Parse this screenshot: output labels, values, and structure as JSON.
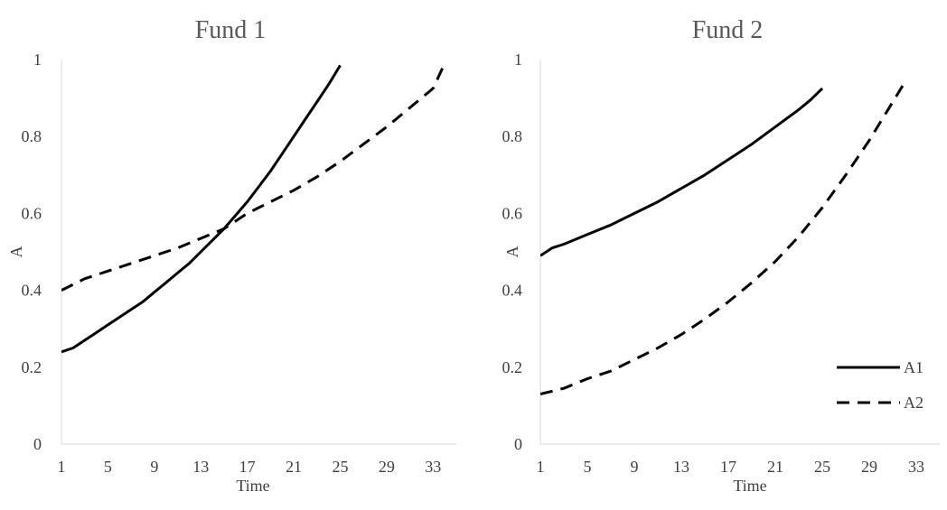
{
  "chart_data": [
    {
      "type": "line",
      "title": "Fund 1",
      "xlabel": "Time",
      "ylabel": "A",
      "xlim": [
        1,
        35
      ],
      "ylim": [
        0,
        1
      ],
      "x_ticks": [
        1,
        5,
        9,
        13,
        17,
        21,
        25,
        29,
        33
      ],
      "y_ticks": [
        0,
        0.2,
        0.4,
        0.6,
        0.8,
        1
      ],
      "y_tick_labels": [
        "0",
        "0.2",
        "0.4",
        "0.6",
        "0.8",
        "1"
      ],
      "grid": false,
      "series": [
        {
          "name": "A1",
          "style": "solid",
          "x": [
            1,
            2,
            3,
            4,
            5,
            6,
            7,
            8,
            9,
            10,
            11,
            12,
            13,
            14,
            15,
            16,
            17,
            18,
            19,
            20,
            21,
            22,
            23,
            24,
            25
          ],
          "y": [
            0.24,
            0.25,
            0.27,
            0.29,
            0.31,
            0.33,
            0.35,
            0.37,
            0.395,
            0.42,
            0.445,
            0.47,
            0.5,
            0.53,
            0.56,
            0.595,
            0.63,
            0.67,
            0.71,
            0.755,
            0.8,
            0.845,
            0.89,
            0.935,
            0.985
          ]
        },
        {
          "name": "A2",
          "style": "dashed",
          "x": [
            1,
            3,
            5,
            7,
            9,
            11,
            13,
            15,
            17,
            19,
            21,
            23,
            25,
            27,
            29,
            31,
            33,
            34
          ],
          "y": [
            0.4,
            0.43,
            0.45,
            0.47,
            0.49,
            0.51,
            0.535,
            0.56,
            0.6,
            0.63,
            0.66,
            0.695,
            0.735,
            0.78,
            0.825,
            0.875,
            0.925,
            0.99
          ]
        }
      ]
    },
    {
      "type": "line",
      "title": "Fund 2",
      "xlabel": "Time",
      "ylabel": "A",
      "xlim": [
        1,
        35
      ],
      "ylim": [
        0,
        1
      ],
      "x_ticks": [
        1,
        5,
        9,
        13,
        17,
        21,
        25,
        29,
        33
      ],
      "y_ticks": [
        0,
        0.2,
        0.4,
        0.6,
        0.8,
        1
      ],
      "y_tick_labels": [
        "0",
        "0.2",
        "0.4",
        "0.6",
        "0.8",
        "1"
      ],
      "grid": false,
      "legend": {
        "placement": "bottom-right",
        "entries": [
          {
            "name": "A1",
            "style": "solid"
          },
          {
            "name": "A2",
            "style": "dashed"
          }
        ]
      },
      "series": [
        {
          "name": "A1",
          "style": "solid",
          "x": [
            1,
            2,
            3,
            5,
            7,
            9,
            11,
            13,
            15,
            17,
            19,
            21,
            23,
            24,
            25
          ],
          "y": [
            0.49,
            0.51,
            0.52,
            0.545,
            0.57,
            0.6,
            0.63,
            0.665,
            0.7,
            0.74,
            0.78,
            0.825,
            0.87,
            0.895,
            0.925
          ]
        },
        {
          "name": "A2",
          "style": "dashed",
          "x": [
            1,
            3,
            5,
            7,
            9,
            11,
            13,
            15,
            17,
            19,
            21,
            23,
            25,
            27,
            29,
            31,
            32
          ],
          "y": [
            0.13,
            0.145,
            0.17,
            0.19,
            0.22,
            0.25,
            0.285,
            0.325,
            0.37,
            0.42,
            0.475,
            0.54,
            0.615,
            0.7,
            0.79,
            0.89,
            0.94
          ]
        }
      ]
    }
  ]
}
